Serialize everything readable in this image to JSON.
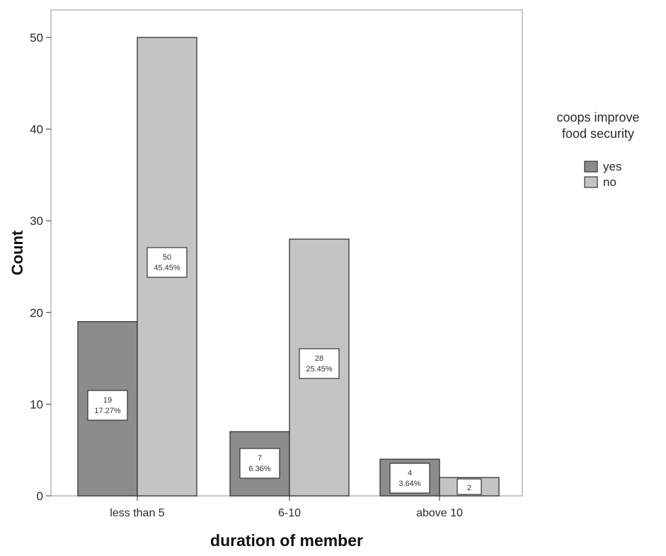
{
  "chart_data": {
    "type": "bar",
    "xlabel": "duration of member",
    "ylabel": "Count",
    "categories": [
      "less than 5",
      "6-10",
      "above 10"
    ],
    "series": [
      {
        "name": "yes",
        "values": [
          19,
          7,
          4
        ],
        "labels": [
          "19\n17.27%",
          "7\n6.36%",
          "4\n3.64%"
        ]
      },
      {
        "name": "no",
        "values": [
          50,
          28,
          2
        ],
        "labels": [
          "50\n45.45%",
          "28\n25.45%",
          "2"
        ]
      }
    ],
    "ylim": [
      0,
      53
    ],
    "yticks": [
      0,
      10,
      20,
      30,
      40,
      50
    ],
    "legend": {
      "title_lines": [
        "coops improve",
        "food security"
      ],
      "placement": "right"
    },
    "colors": {
      "yes": "#8c8c8c",
      "no": "#c4c4c4",
      "frame": "#b5b5b5",
      "text": "#2a2a2a"
    },
    "grid": false
  }
}
